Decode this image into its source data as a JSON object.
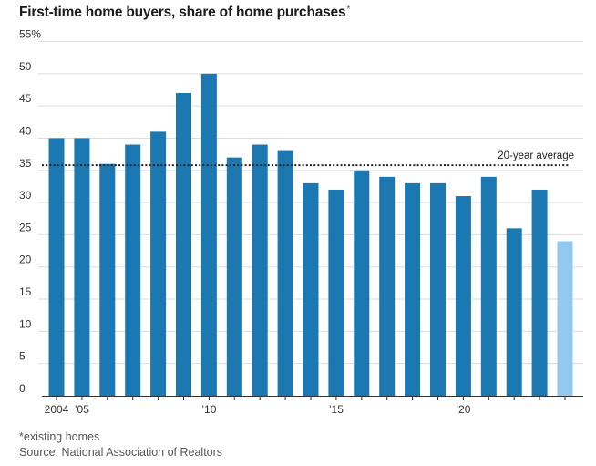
{
  "chart_data": {
    "type": "bar",
    "title": "First-time home buyers, share of home purchases",
    "title_marker": "*",
    "categories": [
      "2004",
      "2005",
      "2006",
      "2007",
      "2008",
      "2009",
      "2010",
      "2011",
      "2012",
      "2013",
      "2014",
      "2015",
      "2016",
      "2017",
      "2018",
      "2019",
      "2020",
      "2021",
      "2022",
      "2023",
      "2024"
    ],
    "values": [
      40,
      40,
      36,
      39,
      41,
      47,
      50,
      37,
      39,
      38,
      33,
      32,
      35,
      34,
      33,
      33,
      31,
      34,
      26,
      32,
      24
    ],
    "highlight_last": true,
    "x_tick_labels": [
      {
        "index": 0,
        "label": "2004"
      },
      {
        "index": 1,
        "label": "’05"
      },
      {
        "index": 6,
        "label": "’10"
      },
      {
        "index": 11,
        "label": "’15"
      },
      {
        "index": 16,
        "label": "’20"
      }
    ],
    "y_ticks": [
      0,
      5,
      10,
      15,
      20,
      25,
      30,
      35,
      40,
      45,
      50,
      55
    ],
    "y_tick_labels": [
      "0",
      "5",
      "10",
      "15",
      "20",
      "25",
      "30",
      "35",
      "40",
      "45",
      "50",
      "55%"
    ],
    "ylim": [
      0,
      55
    ],
    "xlabel": "",
    "ylabel": "",
    "reference_line": {
      "value": 35.8,
      "label": "20-year average",
      "style": "dotted"
    },
    "grid": true,
    "colors": {
      "bar": "#1b78b0",
      "bar_highlight": "#93c9ee",
      "grid": "#dddddd",
      "reference": "#222222",
      "axis": "#333333"
    }
  },
  "footer": {
    "note": "*existing homes",
    "source": "Source: National Association of Realtors"
  }
}
